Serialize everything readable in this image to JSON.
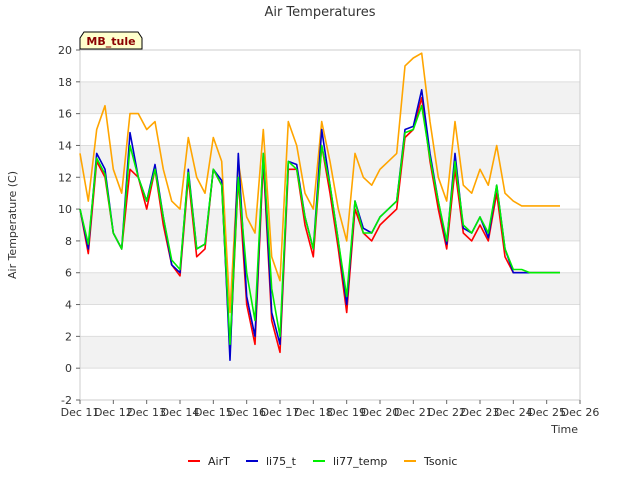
{
  "chart_data": {
    "type": "line",
    "title": "Air Temperatures",
    "xlabel": "Time",
    "ylabel": "Air Temperature (C)",
    "station_label": "MB_tule",
    "ylim": [
      -2,
      20
    ],
    "yticks": [
      -2,
      0,
      2,
      4,
      6,
      8,
      10,
      12,
      14,
      16,
      18,
      20
    ],
    "xlim": [
      11,
      26
    ],
    "xticks": [
      11,
      12,
      13,
      14,
      15,
      16,
      17,
      18,
      19,
      20,
      21,
      22,
      23,
      24,
      25,
      26
    ],
    "xtick_labels": [
      "Dec 11",
      "Dec 12",
      "Dec 13",
      "Dec 14",
      "Dec 15",
      "Dec 16",
      "Dec 17",
      "Dec 18",
      "Dec 19",
      "Dec 20",
      "Dec 21",
      "Dec 22",
      "Dec 23",
      "Dec 24",
      "Dec 25",
      "Dec 26"
    ],
    "grid": true,
    "legend_position": "bottom",
    "x": [
      11.0,
      11.25,
      11.5,
      11.75,
      12.0,
      12.25,
      12.5,
      12.75,
      13.0,
      13.25,
      13.5,
      13.75,
      14.0,
      14.25,
      14.5,
      14.75,
      15.0,
      15.25,
      15.5,
      15.75,
      16.0,
      16.25,
      16.5,
      16.75,
      17.0,
      17.25,
      17.5,
      17.75,
      18.0,
      18.25,
      18.5,
      18.75,
      19.0,
      19.25,
      19.5,
      19.75,
      20.0,
      20.25,
      20.5,
      20.75,
      21.0,
      21.25,
      21.5,
      21.75,
      22.0,
      22.25,
      22.5,
      22.75,
      23.0,
      23.25,
      23.5,
      23.75,
      24.0,
      24.25,
      24.5,
      24.75,
      25.0,
      25.25,
      25.4
    ],
    "series": [
      {
        "name": "AirT",
        "color": "#ff0000",
        "values": [
          10.0,
          7.2,
          13.0,
          12.0,
          8.5,
          7.5,
          12.5,
          12.0,
          10.0,
          12.5,
          9.0,
          6.5,
          5.8,
          12.0,
          7.0,
          7.5,
          12.5,
          11.5,
          1.0,
          12.0,
          4.0,
          1.5,
          13.0,
          3.0,
          1.0,
          12.5,
          12.5,
          9.0,
          7.0,
          14.0,
          11.0,
          7.5,
          3.5,
          10.0,
          8.5,
          8.0,
          9.0,
          9.5,
          10.0,
          14.5,
          15.0,
          17.0,
          13.0,
          10.0,
          7.5,
          12.5,
          8.5,
          8.0,
          9.0,
          8.0,
          11.0,
          7.0,
          6.0,
          6.0,
          6.0,
          6.0,
          6.0,
          6.0,
          6.0
        ]
      },
      {
        "name": "li75_t",
        "color": "#0000cc",
        "values": [
          10.0,
          7.5,
          13.5,
          12.5,
          8.5,
          7.5,
          14.8,
          12.0,
          10.5,
          12.8,
          9.5,
          6.5,
          6.0,
          12.5,
          7.5,
          7.8,
          12.5,
          11.8,
          0.5,
          13.5,
          4.5,
          2.0,
          13.5,
          3.5,
          1.5,
          13.0,
          12.8,
          9.5,
          7.5,
          15.0,
          11.5,
          8.0,
          4.0,
          10.5,
          8.8,
          8.5,
          9.5,
          10.0,
          10.5,
          15.0,
          15.2,
          17.5,
          13.5,
          10.5,
          7.8,
          13.5,
          8.8,
          8.5,
          9.5,
          8.2,
          11.5,
          7.5,
          6.0,
          6.0,
          6.0,
          6.0,
          6.0,
          6.0,
          6.0
        ]
      },
      {
        "name": "li77_temp",
        "color": "#00ee00",
        "values": [
          10.0,
          7.8,
          13.2,
          12.2,
          8.5,
          7.5,
          14.0,
          12.0,
          10.5,
          12.5,
          9.5,
          6.8,
          6.2,
          12.3,
          7.5,
          7.8,
          12.5,
          11.5,
          1.5,
          12.0,
          6.0,
          3.0,
          13.5,
          5.0,
          2.0,
          13.0,
          12.5,
          9.5,
          7.5,
          14.0,
          11.5,
          8.0,
          4.5,
          10.5,
          8.5,
          8.5,
          9.5,
          10.0,
          10.5,
          14.8,
          15.0,
          16.5,
          13.2,
          10.5,
          8.0,
          13.0,
          9.0,
          8.5,
          9.5,
          8.5,
          11.5,
          7.5,
          6.2,
          6.2,
          6.0,
          6.0,
          6.0,
          6.0,
          6.0
        ]
      },
      {
        "name": "Tsonic",
        "color": "#ffa500",
        "values": [
          13.5,
          10.5,
          15.0,
          16.5,
          12.5,
          11.0,
          16.0,
          16.0,
          15.0,
          15.5,
          12.5,
          10.5,
          10.0,
          14.5,
          12.0,
          11.0,
          14.5,
          13.0,
          3.5,
          13.0,
          9.5,
          8.5,
          15.0,
          7.0,
          5.5,
          15.5,
          14.0,
          11.0,
          10.0,
          15.5,
          13.0,
          10.0,
          8.0,
          13.5,
          12.0,
          11.5,
          12.5,
          13.0,
          13.5,
          19.0,
          19.5,
          19.8,
          15.5,
          12.0,
          10.5,
          15.5,
          11.5,
          11.0,
          12.5,
          11.5,
          14.0,
          11.0,
          10.5,
          10.2,
          10.2,
          10.2,
          10.2,
          10.2,
          10.2
        ]
      }
    ]
  }
}
